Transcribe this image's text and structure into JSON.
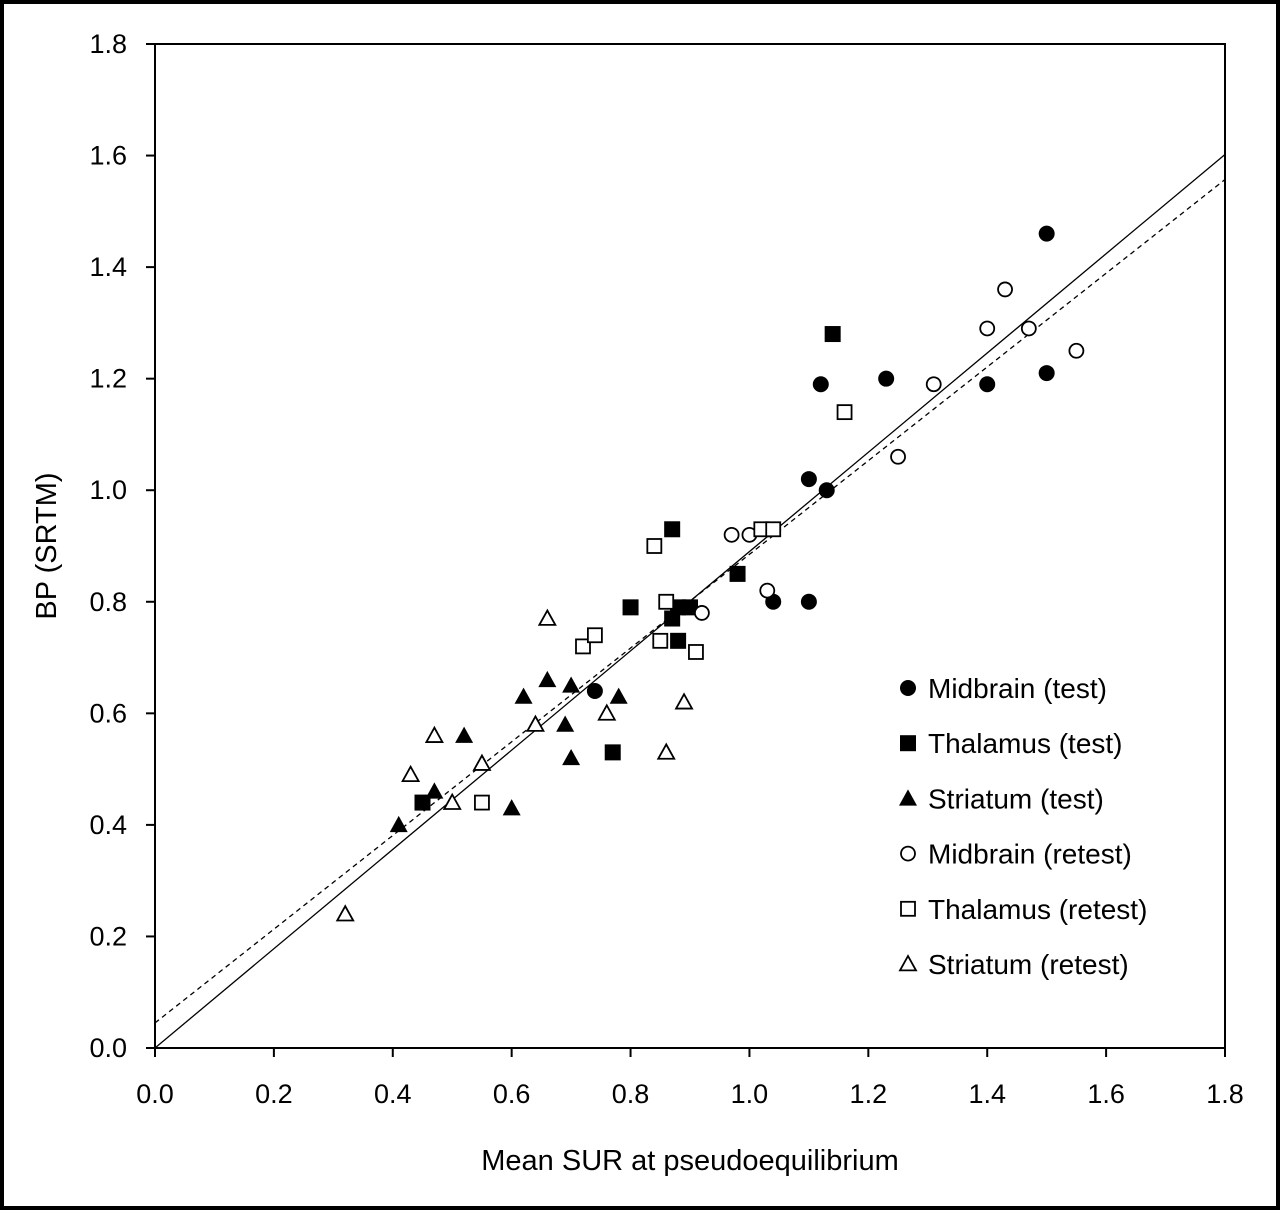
{
  "chart_data": {
    "type": "scatter",
    "title": "",
    "xlabel": "Mean SUR at pseudoequilibrium",
    "ylabel": "BP (SRTM)",
    "xlim": [
      0.0,
      1.8
    ],
    "ylim": [
      0.0,
      1.8
    ],
    "x_ticks": [
      "0.0",
      "0.2",
      "0.4",
      "0.6",
      "0.8",
      "1.0",
      "1.2",
      "1.4",
      "1.6",
      "1.8"
    ],
    "y_ticks": [
      "0.0",
      "0.2",
      "0.4",
      "0.6",
      "0.8",
      "1.0",
      "1.2",
      "1.4",
      "1.6",
      "1.8"
    ],
    "grid": false,
    "legend_position": "bottom-right",
    "series": [
      {
        "name": "Midbrain (test)",
        "marker": "circle",
        "filled": true,
        "points": [
          [
            0.74,
            0.64
          ],
          [
            1.04,
            0.8
          ],
          [
            1.1,
            0.8
          ],
          [
            1.1,
            1.02
          ],
          [
            1.13,
            1.0
          ],
          [
            1.12,
            1.19
          ],
          [
            1.23,
            1.2
          ],
          [
            1.4,
            1.19
          ],
          [
            1.5,
            1.21
          ],
          [
            1.5,
            1.46
          ]
        ]
      },
      {
        "name": "Thalamus (test)",
        "marker": "square",
        "filled": true,
        "points": [
          [
            0.45,
            0.44
          ],
          [
            0.77,
            0.53
          ],
          [
            0.8,
            0.79
          ],
          [
            0.87,
            0.77
          ],
          [
            0.88,
            0.79
          ],
          [
            0.9,
            0.79
          ],
          [
            0.88,
            0.73
          ],
          [
            0.87,
            0.93
          ],
          [
            0.98,
            0.85
          ],
          [
            1.14,
            1.28
          ]
        ]
      },
      {
        "name": "Striatum (test)",
        "marker": "triangle",
        "filled": true,
        "points": [
          [
            0.41,
            0.4
          ],
          [
            0.47,
            0.46
          ],
          [
            0.52,
            0.56
          ],
          [
            0.6,
            0.43
          ],
          [
            0.62,
            0.63
          ],
          [
            0.66,
            0.66
          ],
          [
            0.69,
            0.58
          ],
          [
            0.7,
            0.52
          ],
          [
            0.7,
            0.65
          ],
          [
            0.78,
            0.63
          ]
        ]
      },
      {
        "name": "Midbrain (retest)",
        "marker": "circle",
        "filled": false,
        "points": [
          [
            0.92,
            0.78
          ],
          [
            0.97,
            0.92
          ],
          [
            1.0,
            0.92
          ],
          [
            1.03,
            0.82
          ],
          [
            1.25,
            1.06
          ],
          [
            1.31,
            1.19
          ],
          [
            1.4,
            1.29
          ],
          [
            1.43,
            1.36
          ],
          [
            1.47,
            1.29
          ],
          [
            1.55,
            1.25
          ]
        ]
      },
      {
        "name": "Thalamus (retest)",
        "marker": "square",
        "filled": false,
        "points": [
          [
            0.55,
            0.44
          ],
          [
            0.72,
            0.72
          ],
          [
            0.74,
            0.74
          ],
          [
            0.84,
            0.9
          ],
          [
            0.85,
            0.73
          ],
          [
            0.86,
            0.8
          ],
          [
            0.91,
            0.71
          ],
          [
            1.02,
            0.93
          ],
          [
            1.04,
            0.93
          ],
          [
            1.16,
            1.14
          ]
        ]
      },
      {
        "name": "Striatum (retest)",
        "marker": "triangle",
        "filled": false,
        "points": [
          [
            0.32,
            0.24
          ],
          [
            0.43,
            0.49
          ],
          [
            0.47,
            0.56
          ],
          [
            0.5,
            0.44
          ],
          [
            0.55,
            0.51
          ],
          [
            0.64,
            0.58
          ],
          [
            0.66,
            0.77
          ],
          [
            0.76,
            0.6
          ],
          [
            0.86,
            0.53
          ],
          [
            0.89,
            0.62
          ]
        ]
      }
    ],
    "lines": [
      {
        "style": "solid",
        "intercept": 0.0,
        "slope": 0.89
      },
      {
        "style": "dashed",
        "intercept": 0.045,
        "slope": 0.84
      }
    ]
  }
}
